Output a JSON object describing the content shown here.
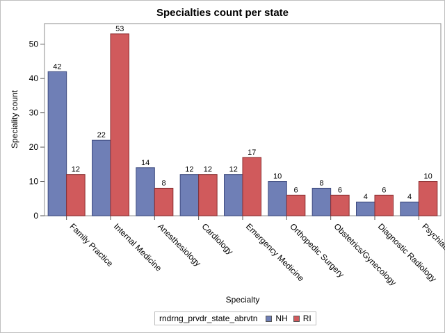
{
  "chart_data": {
    "type": "bar",
    "title": "Specialties count per state",
    "xlabel": "Specialty",
    "ylabel": "Speciality count",
    "categories": [
      "Family Practice",
      "Internal Medicine",
      "Anesthesiology",
      "Cardiology",
      "Emergency Medicine",
      "Orthopedic Surgery",
      "Obstetrics/Gynecology",
      "Diagnostic Radiology",
      "Psychiatry"
    ],
    "series": [
      {
        "name": "NH",
        "values": [
          42,
          22,
          14,
          12,
          12,
          10,
          8,
          4,
          4
        ],
        "color": "#6f7fb6"
      },
      {
        "name": "RI",
        "values": [
          12,
          53,
          8,
          12,
          17,
          6,
          6,
          6,
          10
        ],
        "color": "#d05a5c"
      }
    ],
    "ylim": [
      0,
      56
    ],
    "yticks": [
      0,
      10,
      20,
      30,
      40,
      50
    ],
    "legend": {
      "title": "rndrng_prvdr_state_abrvtn",
      "placement": "bottom-center"
    },
    "grid": false
  }
}
